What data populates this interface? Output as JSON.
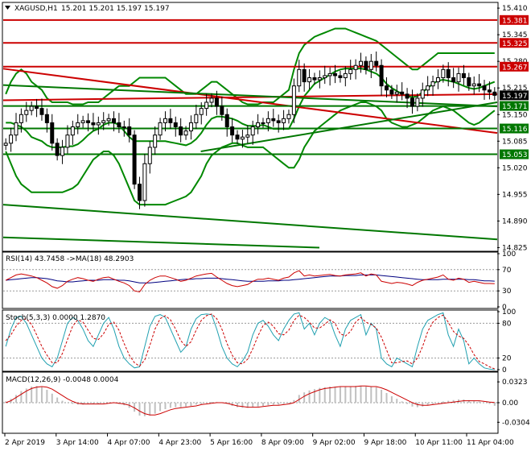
{
  "chart_data": {
    "type": "candlestick",
    "main": {
      "symbol_label": "XAGUSD,H1",
      "ohlc_label": "15.201 15.201 15.197 15.197",
      "y_range": [
        14.82,
        15.42
      ],
      "y_ticks": [
        "15.410",
        "15.345",
        "15.280",
        "15.215",
        "15.150",
        "15.085",
        "15.020",
        "14.955",
        "14.890",
        "14.825"
      ],
      "levels": [
        {
          "label": "15.381",
          "value": 15.381,
          "color": "#cc0000"
        },
        {
          "label": "15.325",
          "value": 15.325,
          "color": "#cc0000"
        },
        {
          "label": "15.267",
          "value": 15.267,
          "color": "#cc0000"
        },
        {
          "label": "15.171",
          "value": 15.171,
          "color": "#007700"
        },
        {
          "label": "15.116",
          "value": 15.116,
          "color": "#007700"
        },
        {
          "label": "15.053",
          "value": 15.053,
          "color": "#007700"
        }
      ],
      "current_price": {
        "label": "15.197",
        "value": 15.197
      },
      "trendlines": [
        {
          "color": "#cc0000",
          "from": [
            0,
            15.262
          ],
          "to": [
            1,
            15.105
          ]
        },
        {
          "color": "#cc0000",
          "from": [
            0,
            15.185
          ],
          "to": [
            1,
            15.2
          ]
        },
        {
          "color": "#007700",
          "from": [
            0.4,
            15.06
          ],
          "to": [
            1,
            15.18
          ]
        },
        {
          "color": "#007700",
          "from": [
            0,
            15.222
          ],
          "to": [
            1,
            15.17
          ]
        },
        {
          "color": "#007700",
          "from": [
            0,
            14.93
          ],
          "to": [
            1,
            14.845
          ]
        },
        {
          "color": "#007700",
          "from": [
            0,
            14.85
          ],
          "to": [
            0.64,
            14.825
          ]
        }
      ],
      "closes": [
        15.08,
        15.1,
        15.13,
        15.15,
        15.16,
        15.17,
        15.165,
        15.15,
        15.13,
        15.08,
        15.05,
        15.07,
        15.1,
        15.12,
        15.13,
        15.135,
        15.13,
        15.125,
        15.13,
        15.135,
        15.14,
        15.13,
        15.12,
        15.12,
        15.1,
        14.98,
        14.94,
        15.03,
        15.07,
        15.1,
        15.13,
        15.14,
        15.13,
        15.12,
        15.1,
        15.11,
        15.13,
        15.15,
        15.165,
        15.18,
        15.19,
        15.17,
        15.15,
        15.12,
        15.1,
        15.09,
        15.095,
        15.1,
        15.12,
        15.13,
        15.13,
        15.14,
        15.135,
        15.13,
        15.14,
        15.15,
        15.22,
        15.26,
        15.23,
        15.24,
        15.235,
        15.24,
        15.245,
        15.25,
        15.245,
        15.24,
        15.25,
        15.26,
        15.27,
        15.28,
        15.26,
        15.28,
        15.27,
        15.22,
        15.21,
        15.2,
        15.205,
        15.2,
        15.19,
        15.17,
        15.19,
        15.21,
        15.22,
        15.23,
        15.24,
        15.26,
        15.24,
        15.23,
        15.25,
        15.24,
        15.22,
        15.225,
        15.22,
        15.21,
        15.205,
        15.197
      ],
      "bollinger": {
        "upper": [
          15.2,
          15.23,
          15.25,
          15.26,
          15.25,
          15.23,
          15.22,
          15.21,
          15.19,
          15.18,
          15.18,
          15.18,
          15.18,
          15.175,
          15.175,
          15.175,
          15.18,
          15.18,
          15.18,
          15.19,
          15.2,
          15.21,
          15.22,
          15.22,
          15.22,
          15.23,
          15.24,
          15.24,
          15.24,
          15.24,
          15.24,
          15.24,
          15.23,
          15.22,
          15.21,
          15.2,
          15.2,
          15.2,
          15.21,
          15.22,
          15.23,
          15.23,
          15.22,
          15.21,
          15.2,
          15.19,
          15.18,
          15.175,
          15.175,
          15.175,
          15.18,
          15.18,
          15.18,
          15.19,
          15.2,
          15.21,
          15.26,
          15.3,
          15.32,
          15.33,
          15.34,
          15.345,
          15.35,
          15.355,
          15.36,
          15.36,
          15.36,
          15.355,
          15.35,
          15.345,
          15.34,
          15.335,
          15.33,
          15.32,
          15.31,
          15.3,
          15.29,
          15.28,
          15.27,
          15.26,
          15.26,
          15.27,
          15.28,
          15.29,
          15.3,
          15.3,
          15.3,
          15.3,
          15.3,
          15.3,
          15.3,
          15.3,
          15.3,
          15.3,
          15.3,
          15.3
        ],
        "lower": [
          15.06,
          15.03,
          15.0,
          14.98,
          14.97,
          14.96,
          14.96,
          14.96,
          14.96,
          14.96,
          14.96,
          14.96,
          14.965,
          14.97,
          14.98,
          15.0,
          15.02,
          15.04,
          15.05,
          15.06,
          15.06,
          15.05,
          15.03,
          15.0,
          14.97,
          14.94,
          14.93,
          14.93,
          14.93,
          14.93,
          14.93,
          14.93,
          14.935,
          14.94,
          14.945,
          14.95,
          14.96,
          14.98,
          15.0,
          15.03,
          15.05,
          15.06,
          15.07,
          15.075,
          15.08,
          15.08,
          15.075,
          15.07,
          15.07,
          15.07,
          15.07,
          15.06,
          15.05,
          15.04,
          15.03,
          15.02,
          15.02,
          15.04,
          15.07,
          15.09,
          15.11,
          15.12,
          15.13,
          15.14,
          15.15,
          15.16,
          15.165,
          15.17,
          15.175,
          15.18,
          15.18,
          15.175,
          15.17,
          15.16,
          15.14,
          15.13,
          15.125,
          15.12,
          15.12,
          15.125,
          15.13,
          15.14,
          15.15,
          15.16,
          15.165,
          15.17,
          15.165,
          15.16,
          15.15,
          15.14,
          15.13,
          15.125,
          15.13,
          15.14,
          15.15,
          15.16
        ]
      }
    },
    "x_axis": {
      "labels": [
        "2 Apr 2019",
        "3 Apr 14:00",
        "4 Apr 07:00",
        "4 Apr 23:00",
        "5 Apr 16:00",
        "8 Apr 09:00",
        "9 Apr 02:00",
        "9 Apr 18:00",
        "10 Apr 11:00",
        "11 Apr 04:00"
      ]
    },
    "rsi": {
      "label": "RSI(14) 43.7458   ->MA(18) 48.2903",
      "y_range": [
        0,
        100
      ],
      "y_ticks": [
        "100",
        "70",
        "30",
        "0"
      ],
      "values": [
        50,
        55,
        60,
        62,
        60,
        58,
        55,
        50,
        45,
        38,
        35,
        40,
        48,
        52,
        55,
        53,
        50,
        48,
        52,
        55,
        56,
        52,
        48,
        45,
        40,
        30,
        28,
        42,
        50,
        55,
        58,
        58,
        55,
        52,
        48,
        50,
        54,
        58,
        60,
        62,
        63,
        56,
        50,
        44,
        40,
        38,
        40,
        42,
        48,
        52,
        52,
        54,
        52,
        50,
        54,
        56,
        64,
        68,
        58,
        60,
        58,
        59,
        60,
        61,
        59,
        58,
        60,
        61,
        62,
        64,
        58,
        62,
        60,
        48,
        46,
        44,
        46,
        45,
        43,
        40,
        46,
        50,
        52,
        54,
        56,
        60,
        52,
        50,
        54,
        52,
        46,
        48,
        46,
        44,
        44,
        43.7
      ],
      "ma": [
        50,
        51,
        52,
        53,
        54,
        55,
        55,
        54,
        53,
        51,
        49,
        48,
        47,
        47,
        48,
        49,
        50,
        50,
        50,
        51,
        51,
        51,
        50,
        50,
        49,
        47,
        45,
        45,
        45,
        46,
        47,
        48,
        49,
        50,
        51,
        52,
        52,
        53,
        53,
        54,
        54,
        54,
        53,
        52,
        51,
        50,
        49,
        48,
        48,
        48,
        48,
        49,
        49,
        49,
        50,
        50,
        51,
        52,
        53,
        54,
        55,
        56,
        57,
        58,
        58,
        58,
        59,
        59,
        59,
        60,
        60,
        60,
        60,
        59,
        58,
        57,
        56,
        55,
        54,
        53,
        52,
        51,
        51,
        51,
        51,
        52,
        52,
        52,
        52,
        52,
        51,
        51,
        50,
        49,
        49,
        48.3
      ]
    },
    "stochastic": {
      "label": "Stoch(5,3,3) 0.0000 1.2870",
      "y_range": [
        0,
        100
      ],
      "y_ticks": [
        "100",
        "80",
        "20",
        "0"
      ],
      "k": [
        40,
        70,
        90,
        92,
        80,
        60,
        40,
        20,
        10,
        5,
        20,
        50,
        80,
        90,
        85,
        70,
        50,
        40,
        60,
        80,
        90,
        70,
        40,
        20,
        10,
        3,
        5,
        40,
        75,
        92,
        95,
        90,
        70,
        50,
        30,
        40,
        70,
        88,
        95,
        96,
        95,
        70,
        40,
        20,
        10,
        5,
        15,
        30,
        60,
        80,
        85,
        75,
        60,
        50,
        70,
        85,
        96,
        98,
        70,
        80,
        60,
        80,
        90,
        85,
        60,
        40,
        70,
        85,
        90,
        95,
        60,
        80,
        70,
        20,
        10,
        5,
        20,
        15,
        10,
        5,
        40,
        70,
        85,
        90,
        95,
        98,
        60,
        40,
        70,
        50,
        10,
        20,
        10,
        3,
        1,
        0
      ],
      "d": [
        50,
        60,
        75,
        85,
        88,
        78,
        60,
        40,
        25,
        12,
        12,
        28,
        52,
        75,
        86,
        82,
        68,
        54,
        52,
        62,
        78,
        82,
        68,
        45,
        25,
        12,
        6,
        17,
        42,
        70,
        88,
        93,
        86,
        70,
        50,
        40,
        48,
        68,
        85,
        93,
        96,
        88,
        70,
        45,
        25,
        12,
        10,
        18,
        36,
        58,
        76,
        82,
        75,
        62,
        60,
        68,
        85,
        94,
        90,
        82,
        72,
        72,
        78,
        86,
        80,
        62,
        58,
        66,
        82,
        90,
        82,
        78,
        72,
        56,
        34,
        12,
        12,
        14,
        15,
        10,
        20,
        40,
        66,
        82,
        90,
        94,
        82,
        66,
        58,
        54,
        42,
        26,
        14,
        10,
        5,
        1.3
      ]
    },
    "macd": {
      "label": "MACD(12,26,9) -0.0048 0.0004",
      "y_range": [
        -0.045,
        0.045
      ],
      "y_ticks": [
        "0.0323",
        "0.00",
        "-0.0304"
      ],
      "hist": [
        0.002,
        0.006,
        0.012,
        0.018,
        0.022,
        0.025,
        0.026,
        0.024,
        0.02,
        0.014,
        0.008,
        0.003,
        0.0,
        -0.002,
        -0.003,
        -0.003,
        -0.002,
        -0.002,
        -0.002,
        -0.001,
        0.0,
        0.0,
        -0.002,
        -0.004,
        -0.008,
        -0.014,
        -0.02,
        -0.021,
        -0.02,
        -0.017,
        -0.013,
        -0.01,
        -0.008,
        -0.007,
        -0.007,
        -0.006,
        -0.005,
        -0.003,
        -0.002,
        0.0,
        0.001,
        0.001,
        0.0,
        -0.002,
        -0.005,
        -0.007,
        -0.008,
        -0.008,
        -0.007,
        -0.006,
        -0.005,
        -0.004,
        -0.003,
        -0.003,
        -0.002,
        -0.001,
        0.004,
        0.012,
        0.016,
        0.019,
        0.021,
        0.023,
        0.024,
        0.025,
        0.025,
        0.025,
        0.025,
        0.025,
        0.026,
        0.026,
        0.025,
        0.025,
        0.024,
        0.02,
        0.015,
        0.01,
        0.006,
        0.002,
        -0.002,
        -0.006,
        -0.007,
        -0.006,
        -0.004,
        -0.002,
        0.0,
        0.002,
        0.003,
        0.004,
        0.005,
        0.005,
        0.004,
        0.003,
        0.002,
        0.0,
        -0.002,
        -0.0048
      ],
      "signal": [
        0.0,
        0.003,
        0.008,
        0.013,
        0.018,
        0.022,
        0.024,
        0.025,
        0.024,
        0.021,
        0.016,
        0.011,
        0.006,
        0.002,
        -0.001,
        -0.002,
        -0.002,
        -0.002,
        -0.002,
        -0.002,
        -0.001,
        0.0,
        -0.001,
        -0.002,
        -0.004,
        -0.008,
        -0.013,
        -0.017,
        -0.019,
        -0.019,
        -0.017,
        -0.014,
        -0.011,
        -0.009,
        -0.008,
        -0.007,
        -0.006,
        -0.005,
        -0.003,
        -0.002,
        -0.001,
        0.0,
        0.0,
        -0.001,
        -0.003,
        -0.005,
        -0.006,
        -0.007,
        -0.007,
        -0.007,
        -0.006,
        -0.005,
        -0.004,
        -0.004,
        -0.003,
        -0.002,
        0.0,
        0.005,
        0.01,
        0.014,
        0.017,
        0.02,
        0.022,
        0.023,
        0.024,
        0.025,
        0.025,
        0.025,
        0.025,
        0.026,
        0.026,
        0.025,
        0.025,
        0.023,
        0.02,
        0.016,
        0.012,
        0.008,
        0.004,
        0.0,
        -0.003,
        -0.004,
        -0.004,
        -0.003,
        -0.002,
        -0.001,
        0.0,
        0.001,
        0.002,
        0.003,
        0.003,
        0.003,
        0.003,
        0.002,
        0.001,
        0.0004
      ]
    }
  }
}
